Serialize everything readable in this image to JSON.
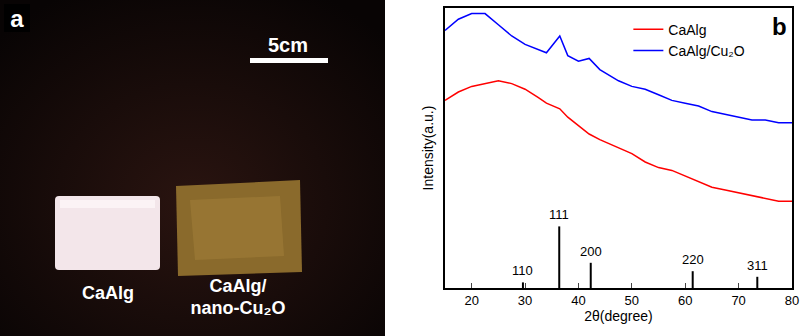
{
  "photo": {
    "label": "a",
    "scale_bar": "5cm",
    "samples": [
      [
        "CaAlg"
      ],
      [
        "CaAlg/",
        "nano-Cu₂O"
      ]
    ]
  },
  "chart_label": "b",
  "chart_data": {
    "type": "line",
    "x_label": "2θ(degree)",
    "y_label": "Intensity(a.u.)",
    "x": [
      15,
      17.5,
      20,
      22.5,
      25,
      27.5,
      30,
      32.5,
      34,
      36.5,
      38,
      40,
      42,
      44,
      47.5,
      50,
      52.5,
      55,
      57.5,
      60,
      62.5,
      65,
      67.5,
      70,
      72.5,
      75,
      77.5,
      80
    ],
    "series": [
      {
        "name": "CaAlg",
        "color": "#ff0000",
        "line_style": "solid",
        "values": [
          67,
          70,
          72,
          73,
          74,
          73,
          71,
          68,
          66,
          64,
          61,
          58,
          55,
          53,
          50,
          48,
          45,
          43,
          42,
          40,
          38,
          36,
          35,
          34,
          33,
          32,
          31,
          31
        ]
      },
      {
        "name": "CaAlg/Cu₂O",
        "color": "#0000ff",
        "line_style": "solid",
        "values": [
          92,
          96,
          98,
          98,
          94,
          90,
          87,
          85,
          84,
          90,
          83,
          81,
          82,
          78,
          74,
          72,
          71,
          69,
          67,
          66,
          65,
          63,
          62,
          61,
          60,
          60,
          59,
          59
        ]
      }
    ],
    "reference_lines": {
      "x": [
        29.6,
        36.4,
        42.3,
        61.4,
        73.5
      ],
      "values": [
        2,
        22,
        9,
        6,
        4
      ],
      "labels": [
        "110",
        "111",
        "200",
        "220",
        "311"
      ],
      "color": "#000000"
    },
    "xlim": [
      15,
      80
    ],
    "xticks": [
      20,
      30,
      40,
      50,
      60,
      70,
      80
    ],
    "ylim": [
      0,
      100
    ],
    "yticks": [],
    "tick_labels": "x",
    "grid": false,
    "legend": "top right"
  }
}
